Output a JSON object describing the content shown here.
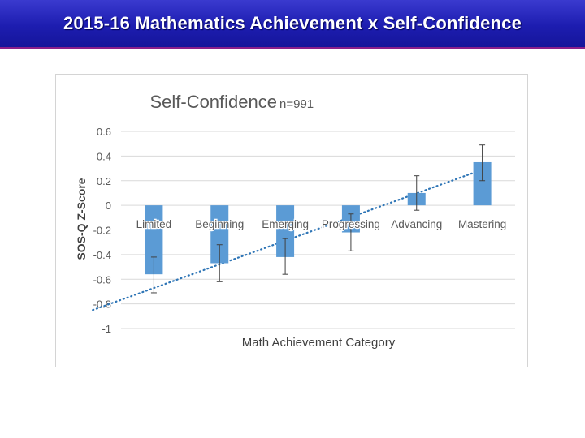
{
  "slide": {
    "title": "2015-16 Mathematics Achievement x Self-Confidence"
  },
  "colors": {
    "title_bg": "#2222bb",
    "bar": "#5b9bd5",
    "trendline": "#2e75b6",
    "error_bar": "#404040"
  },
  "chart_data": {
    "type": "bar",
    "title": "Self-Confidence",
    "subtitle": "n=991",
    "xlabel": "Math Achievement  Category",
    "ylabel": "SOS-Q Z-Score",
    "ylim": [
      -1,
      0.6
    ],
    "yticks": [
      0.6,
      0.4,
      0.2,
      0,
      -0.2,
      -0.4,
      -0.6,
      -0.8,
      -1
    ],
    "ytick_labels": [
      "0.6",
      "0.4",
      "0.2",
      "0",
      "-0.2",
      "-0.4",
      "-0.6",
      "-0.8",
      "-1"
    ],
    "grid": true,
    "categories": [
      "Limited",
      "Beginning",
      "Emerging",
      "Progressing",
      "Advancing",
      "Mastering"
    ],
    "values": [
      -0.56,
      -0.47,
      -0.42,
      -0.22,
      0.1,
      0.35
    ],
    "error_low": [
      -0.71,
      -0.62,
      -0.56,
      -0.37,
      -0.04,
      0.2
    ],
    "error_high": [
      -0.42,
      -0.32,
      -0.27,
      -0.07,
      0.24,
      0.49
    ],
    "trendline": {
      "type": "linear",
      "style": "dotted",
      "y_first": -0.85,
      "y_last": 0.27
    }
  }
}
